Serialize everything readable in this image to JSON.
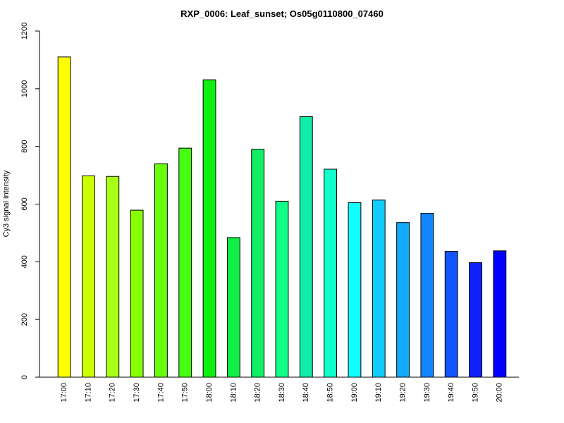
{
  "chart_data": {
    "type": "bar",
    "title": "RXP_0006: Leaf_sunset; Os05g0110800_07460",
    "ylabel": "Cy3 signal intensity",
    "xlabel": "",
    "ylim": [
      0,
      1200
    ],
    "yticks": [
      0,
      200,
      400,
      600,
      800,
      1000,
      1200
    ],
    "categories": [
      "17:00",
      "17:10",
      "17:20",
      "17:30",
      "17:40",
      "17:50",
      "18:00",
      "18:10",
      "18:20",
      "18:30",
      "18:40",
      "18:50",
      "19:00",
      "19:10",
      "19:20",
      "19:30",
      "19:40",
      "19:50",
      "20:00"
    ],
    "values": [
      1110,
      698,
      696,
      579,
      740,
      794,
      1031,
      484,
      790,
      610,
      903,
      721,
      605,
      614,
      536,
      568,
      436,
      397,
      438
    ],
    "colors": [
      "#ffff00",
      "#ccff00",
      "#aaff16",
      "#88ff00",
      "#66ff0d",
      "#44ff10",
      "#11ee11",
      "#11ee44",
      "#11ee66",
      "#11ff88",
      "#11eeaa",
      "#11ffcc",
      "#11ffff",
      "#11ccff",
      "#11aaff",
      "#1188ff",
      "#1155ff",
      "#1122ff",
      "#0000ff"
    ],
    "grid": false,
    "legend": "none"
  }
}
